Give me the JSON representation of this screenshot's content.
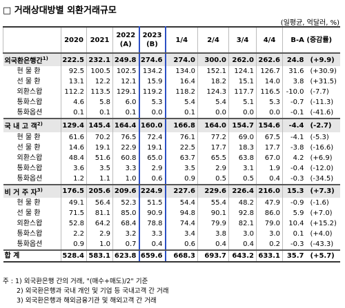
{
  "header": {
    "title": "□ 거래상대방별 외환거래규모",
    "unit": "(일평균, 억달러, %)"
  },
  "table": {
    "columns": [
      {
        "text": "2020"
      },
      {
        "text": "2021"
      },
      {
        "text": "2022",
        "sub": "(A)"
      },
      {
        "text": "2023",
        "sub": "(B)"
      },
      {
        "text": "1/4"
      },
      {
        "text": "2/4"
      },
      {
        "text": "3/4"
      },
      {
        "text": "4/4"
      },
      {
        "text": "B-A (증감률)"
      }
    ],
    "groups": [
      {
        "label": "외국환은행간",
        "note": "1)",
        "cells": [
          "222.5",
          "232.1",
          "249.8",
          "274.6",
          "274.0",
          "300.0",
          "262.0",
          "262.6",
          "24.8",
          "(+9.9)"
        ],
        "items": [
          {
            "label": "현 물 환",
            "cells": [
              "92.5",
              "100.5",
              "102.5",
              "134.2",
              "134.0",
              "152.1",
              "124.1",
              "126.7",
              "31.6",
              "(+30.9)"
            ]
          },
          {
            "label": "선 물 환",
            "cells": [
              "13.1",
              "12.2",
              "12.1",
              "15.9",
              "16.4",
              "18.2",
              "15.1",
              "14.0",
              "3.8",
              "(+31.5)"
            ]
          },
          {
            "label": "외환스왑",
            "cells": [
              "112.2",
              "113.5",
              "129.1",
              "119.2",
              "118.2",
              "124.3",
              "117.7",
              "116.5",
              "-10.0",
              "(-7.7)"
            ]
          },
          {
            "label": "통화스왑",
            "cells": [
              "4.6",
              "5.8",
              "6.0",
              "5.3",
              "5.4",
              "5.4",
              "5.1",
              "5.3",
              "-0.7",
              "(-11.3)"
            ]
          },
          {
            "label": "통화옵션",
            "cells": [
              "0.1",
              "0.1",
              "0.1",
              "0.0",
              "0.1",
              "0.0",
              "0.0",
              "0.0",
              "-0.1",
              "(-41.6)"
            ]
          }
        ]
      },
      {
        "label": "국 내 고 객",
        "note": "2)",
        "cells": [
          "129.4",
          "145.4",
          "164.4",
          "160.0",
          "166.8",
          "164.0",
          "154.7",
          "154.6",
          "-4.4",
          "(-2.7)"
        ],
        "items": [
          {
            "label": "현 물 환",
            "cells": [
              "61.6",
              "70.2",
              "76.5",
              "72.4",
              "76.1",
              "77.2",
              "69.0",
              "67.5",
              "-4.1",
              "(-5.3)"
            ]
          },
          {
            "label": "선 물 환",
            "cells": [
              "14.6",
              "19.1",
              "22.9",
              "19.1",
              "22.5",
              "17.7",
              "18.3",
              "17.7",
              "-3.8",
              "(-16.6)"
            ]
          },
          {
            "label": "외환스왑",
            "cells": [
              "48.4",
              "51.6",
              "60.8",
              "65.0",
              "63.7",
              "65.5",
              "63.8",
              "67.0",
              "4.2",
              "(+6.9)"
            ]
          },
          {
            "label": "통화스왑",
            "cells": [
              "3.6",
              "3.5",
              "3.3",
              "2.9",
              "3.5",
              "2.9",
              "3.1",
              "1.9",
              "-0.4",
              "(-12.0)"
            ]
          },
          {
            "label": "통화옵션",
            "cells": [
              "1.2",
              "1.1",
              "1.0",
              "0.6",
              "0.9",
              "0.5",
              "0.5",
              "0.4",
              "-0.3",
              "(-34.5)"
            ]
          }
        ]
      },
      {
        "label": "비 거 주 자",
        "note": "3)",
        "cells": [
          "176.5",
          "205.6",
          "209.6",
          "224.9",
          "227.6",
          "229.6",
          "226.4",
          "216.0",
          "15.3",
          "(+7.3)"
        ],
        "items": [
          {
            "label": "현 물 환",
            "cells": [
              "49.1",
              "56.4",
              "52.3",
              "51.5",
              "54.4",
              "55.4",
              "48.2",
              "47.9",
              "-0.9",
              "(-1.6)"
            ]
          },
          {
            "label": "선 물 환",
            "cells": [
              "71.5",
              "81.1",
              "85.0",
              "90.9",
              "94.8",
              "90.1",
              "92.8",
              "86.0",
              "5.9",
              "(+7.0)"
            ]
          },
          {
            "label": "외환스왑",
            "cells": [
              "52.8",
              "64.2",
              "68.4",
              "78.8",
              "74.4",
              "79.9",
              "82.1",
              "79.0",
              "10.4",
              "(+15.2)"
            ]
          },
          {
            "label": "통화스왑",
            "cells": [
              "2.2",
              "2.9",
              "3.2",
              "3.3",
              "3.4",
              "3.8",
              "3.0",
              "3.0",
              "0.1",
              "(+4.0)"
            ]
          },
          {
            "label": "통화옵션",
            "cells": [
              "0.9",
              "1.0",
              "0.7",
              "0.4",
              "0.6",
              "0.4",
              "0.4",
              "0.2",
              "-0.3",
              "(-43.3)"
            ]
          }
        ]
      }
    ],
    "total": {
      "label": "합      계",
      "cells": [
        "528.4",
        "583.1",
        "623.8",
        "659.6",
        "668.3",
        "693.7",
        "643.2",
        "633.1",
        "35.7",
        "(+5.7)"
      ]
    }
  },
  "notes": [
    "주 : 1) 외국환은행 간의 거래, \"(매수+매도)/2\" 기준",
    "2) 외국환은행과 국내 개인 및 기업 등 국내고객 간 거래",
    "3) 외국환은행과 해외금융기관 및 해외고객 간 거래"
  ]
}
